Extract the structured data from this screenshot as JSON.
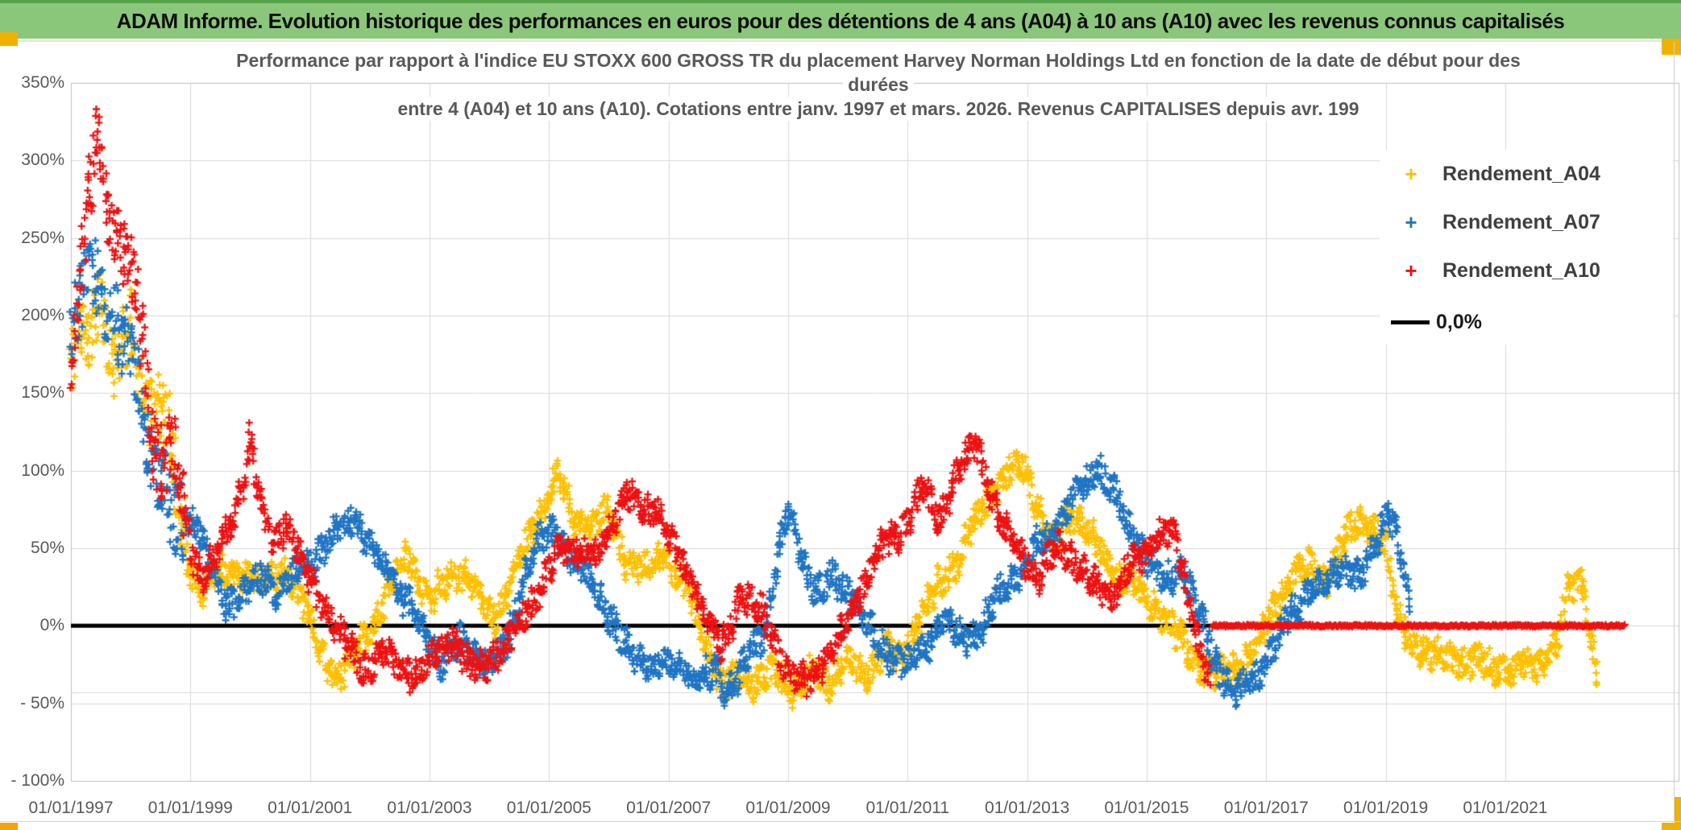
{
  "banner": {
    "title": "ADAM Informe. Evolution historique des performances en euros pour des détentions de 4 ans (A04) à 10 ans (A10) avec les revenus connus capitalisés"
  },
  "colors": {
    "banner_bg": "#8BC77B",
    "banner_top_edge": "#55A24B",
    "accent_gold": "#F0B100",
    "accent_orange": "#F5A300",
    "grid": "#D9D9D9",
    "plot_border": "#BFBFBF",
    "axis_text": "#595959",
    "title_text": "#595959",
    "legend_text": "#3F3F3F",
    "series_a04": "#FFC000",
    "series_a07": "#1F74C4",
    "series_a10": "#EE1111",
    "zero_line": "#000000"
  },
  "chart_data": {
    "type": "scatter",
    "title_lines": [
      "Performance par rapport à l'indice EU STOXX 600 GROSS TR  du placement Harvey Norman Holdings Ltd en fonction de la date de début pour des",
      "durées",
      "entre 4 (A04) et 10 ans (A10). Cotations entre janv. 1997 et mars. 2026. Revenus CAPITALISES depuis avr. 199"
    ],
    "legend_position": "right-top",
    "axes": {
      "y_min": -100,
      "y_max": 350,
      "y_major_unit": 50,
      "x_min_year": 1997.0,
      "x_max_year": 2023.9,
      "x_tick_step_years": 2,
      "grid": true,
      "extra_gridline_value": -43
    },
    "y_tick_labels": [
      "350%",
      "300%",
      "250%",
      "200%",
      "150%",
      "100%",
      "50%",
      "0%",
      "- 50%",
      "- 100%"
    ],
    "y_tick_values": [
      350,
      300,
      250,
      200,
      150,
      100,
      50,
      0,
      -50,
      -100
    ],
    "x_tick_labels": [
      "01/01/1997",
      "01/01/1999",
      "01/01/2001",
      "01/01/2003",
      "01/01/2005",
      "01/01/2007",
      "01/01/2009",
      "01/01/2011",
      "01/01/2013",
      "01/01/2015",
      "01/01/2017",
      "01/01/2019",
      "01/01/2021"
    ],
    "x_tick_years": [
      1997,
      1999,
      2001,
      2003,
      2005,
      2007,
      2009,
      2011,
      2013,
      2015,
      2017,
      2019,
      2021
    ],
    "zero_line": {
      "label": "0,0%",
      "value": 0,
      "color": "#000000",
      "x_start_year": 1997.0,
      "x_end_year": 2023.0
    },
    "series": [
      {
        "name": "Rendement_A04",
        "color": "#FFC000",
        "marker": "plus",
        "seed": 101,
        "anchors": [
          [
            1997.0,
            165
          ],
          [
            1997.15,
            205
          ],
          [
            1997.3,
            185
          ],
          [
            1997.5,
            210
          ],
          [
            1997.7,
            160
          ],
          [
            1997.85,
            185
          ],
          [
            1998.0,
            195
          ],
          [
            1998.2,
            150
          ],
          [
            1998.4,
            130
          ],
          [
            1998.55,
            150
          ],
          [
            1998.7,
            115
          ],
          [
            1998.85,
            70
          ],
          [
            1999.0,
            30
          ],
          [
            1999.2,
            25
          ],
          [
            1999.4,
            40
          ],
          [
            1999.7,
            30
          ],
          [
            2000.0,
            35
          ],
          [
            2000.3,
            25
          ],
          [
            2000.6,
            35
          ],
          [
            2000.9,
            15
          ],
          [
            2001.2,
            -20
          ],
          [
            2001.5,
            -32
          ],
          [
            2001.8,
            -15
          ],
          [
            2002.1,
            5
          ],
          [
            2002.4,
            30
          ],
          [
            2002.6,
            48
          ],
          [
            2002.8,
            30
          ],
          [
            2003.0,
            15
          ],
          [
            2003.3,
            30
          ],
          [
            2003.6,
            35
          ],
          [
            2003.9,
            15
          ],
          [
            2004.1,
            5
          ],
          [
            2004.4,
            30
          ],
          [
            2004.7,
            60
          ],
          [
            2005.0,
            85
          ],
          [
            2005.15,
            98
          ],
          [
            2005.4,
            70
          ],
          [
            2005.7,
            62
          ],
          [
            2006.0,
            75
          ],
          [
            2006.3,
            40
          ],
          [
            2006.6,
            35
          ],
          [
            2006.9,
            48
          ],
          [
            2007.1,
            35
          ],
          [
            2007.4,
            15
          ],
          [
            2007.7,
            -20
          ],
          [
            2007.9,
            -42
          ],
          [
            2008.2,
            -30
          ],
          [
            2008.5,
            -38
          ],
          [
            2008.8,
            -28
          ],
          [
            2009.1,
            -42
          ],
          [
            2009.4,
            -30
          ],
          [
            2009.7,
            -35
          ],
          [
            2010.0,
            -25
          ],
          [
            2010.3,
            -30
          ],
          [
            2010.6,
            -15
          ],
          [
            2010.9,
            -22
          ],
          [
            2011.2,
            5
          ],
          [
            2011.5,
            25
          ],
          [
            2011.8,
            40
          ],
          [
            2012.1,
            65
          ],
          [
            2012.4,
            85
          ],
          [
            2012.7,
            100
          ],
          [
            2012.95,
            103
          ],
          [
            2013.2,
            75
          ],
          [
            2013.45,
            50
          ],
          [
            2013.7,
            72
          ],
          [
            2013.9,
            68
          ],
          [
            2014.1,
            55
          ],
          [
            2014.4,
            38
          ],
          [
            2014.7,
            28
          ],
          [
            2015.0,
            18
          ],
          [
            2015.3,
            8
          ],
          [
            2015.6,
            -12
          ],
          [
            2015.9,
            -25
          ],
          [
            2016.2,
            -32
          ],
          [
            2016.5,
            -28
          ],
          [
            2016.8,
            -15
          ],
          [
            2017.1,
            10
          ],
          [
            2017.4,
            30
          ],
          [
            2017.7,
            38
          ],
          [
            2018.0,
            28
          ],
          [
            2018.3,
            55
          ],
          [
            2018.55,
            68
          ],
          [
            2018.8,
            62
          ],
          [
            2019.0,
            50
          ],
          [
            2019.2,
            10
          ],
          [
            2019.45,
            -12
          ],
          [
            2019.7,
            -20
          ],
          [
            2020.0,
            -15
          ],
          [
            2020.3,
            -28
          ],
          [
            2020.6,
            -20
          ],
          [
            2020.9,
            -28
          ],
          [
            2021.1,
            -35
          ],
          [
            2021.35,
            -20
          ],
          [
            2021.6,
            -28
          ],
          [
            2021.85,
            -15
          ],
          [
            2022.05,
            28
          ],
          [
            2022.3,
            25
          ],
          [
            2022.45,
            -15
          ],
          [
            2022.55,
            -33
          ]
        ]
      },
      {
        "name": "Rendement_A07",
        "color": "#1F74C4",
        "marker": "plus",
        "seed": 202,
        "anchors": [
          [
            1997.0,
            185
          ],
          [
            1997.2,
            215
          ],
          [
            1997.4,
            228
          ],
          [
            1997.6,
            205
          ],
          [
            1997.8,
            190
          ],
          [
            1998.0,
            172
          ],
          [
            1998.15,
            150
          ],
          [
            1998.3,
            118
          ],
          [
            1998.5,
            95
          ],
          [
            1998.7,
            68
          ],
          [
            1998.9,
            70
          ],
          [
            1999.1,
            68
          ],
          [
            1999.3,
            40
          ],
          [
            1999.6,
            15
          ],
          [
            1999.9,
            22
          ],
          [
            2000.2,
            32
          ],
          [
            2000.5,
            22
          ],
          [
            2000.8,
            35
          ],
          [
            2001.1,
            45
          ],
          [
            2001.4,
            58
          ],
          [
            2001.7,
            72
          ],
          [
            2002.0,
            52
          ],
          [
            2002.3,
            35
          ],
          [
            2002.6,
            18
          ],
          [
            2002.9,
            -5
          ],
          [
            2003.2,
            -22
          ],
          [
            2003.5,
            -12
          ],
          [
            2003.8,
            -18
          ],
          [
            2004.0,
            -26
          ],
          [
            2004.3,
            -12
          ],
          [
            2004.6,
            35
          ],
          [
            2004.9,
            58
          ],
          [
            2005.1,
            62
          ],
          [
            2005.4,
            42
          ],
          [
            2005.7,
            30
          ],
          [
            2006.0,
            8
          ],
          [
            2006.3,
            -15
          ],
          [
            2006.6,
            -22
          ],
          [
            2006.9,
            -28
          ],
          [
            2007.2,
            -22
          ],
          [
            2007.5,
            -35
          ],
          [
            2007.8,
            -30
          ],
          [
            2008.0,
            -42
          ],
          [
            2008.3,
            -22
          ],
          [
            2008.6,
            -5
          ],
          [
            2008.85,
            50
          ],
          [
            2009.0,
            74
          ],
          [
            2009.2,
            45
          ],
          [
            2009.5,
            22
          ],
          [
            2009.8,
            30
          ],
          [
            2010.1,
            18
          ],
          [
            2010.4,
            -5
          ],
          [
            2010.7,
            -18
          ],
          [
            2011.0,
            -25
          ],
          [
            2011.3,
            -12
          ],
          [
            2011.6,
            3
          ],
          [
            2011.9,
            -8
          ],
          [
            2012.2,
            -3
          ],
          [
            2012.5,
            18
          ],
          [
            2012.8,
            32
          ],
          [
            2013.1,
            48
          ],
          [
            2013.4,
            58
          ],
          [
            2013.7,
            78
          ],
          [
            2013.95,
            88
          ],
          [
            2014.2,
            103
          ],
          [
            2014.45,
            85
          ],
          [
            2014.7,
            62
          ],
          [
            2015.0,
            45
          ],
          [
            2015.3,
            28
          ],
          [
            2015.6,
            38
          ],
          [
            2015.9,
            5
          ],
          [
            2016.2,
            -28
          ],
          [
            2016.5,
            -42
          ],
          [
            2016.8,
            -35
          ],
          [
            2017.1,
            -15
          ],
          [
            2017.4,
            8
          ],
          [
            2017.7,
            22
          ],
          [
            2018.0,
            28
          ],
          [
            2018.3,
            38
          ],
          [
            2018.6,
            32
          ],
          [
            2018.85,
            55
          ],
          [
            2019.05,
            78
          ],
          [
            2019.25,
            45
          ],
          [
            2019.4,
            8
          ]
        ]
      },
      {
        "name": "Rendement_A10",
        "color": "#EE1111",
        "marker": "plus",
        "seed": 303,
        "flat_zero_segment": [
          2016.1,
          2023.0
        ],
        "anchors": [
          [
            1997.0,
            150
          ],
          [
            1997.15,
            225
          ],
          [
            1997.3,
            278
          ],
          [
            1997.45,
            320
          ],
          [
            1997.6,
            262
          ],
          [
            1997.75,
            252
          ],
          [
            1997.9,
            238
          ],
          [
            1998.05,
            228
          ],
          [
            1998.2,
            185
          ],
          [
            1998.35,
            122
          ],
          [
            1998.5,
            105
          ],
          [
            1998.65,
            118
          ],
          [
            1998.8,
            98
          ],
          [
            1999.0,
            48
          ],
          [
            1999.2,
            32
          ],
          [
            1999.45,
            48
          ],
          [
            1999.7,
            65
          ],
          [
            1999.9,
            98
          ],
          [
            2000.0,
            122
          ],
          [
            2000.2,
            72
          ],
          [
            2000.4,
            52
          ],
          [
            2000.6,
            68
          ],
          [
            2000.8,
            48
          ],
          [
            2001.0,
            28
          ],
          [
            2001.3,
            8
          ],
          [
            2001.6,
            -12
          ],
          [
            2001.9,
            -28
          ],
          [
            2002.2,
            -18
          ],
          [
            2002.5,
            -25
          ],
          [
            2002.8,
            -32
          ],
          [
            2003.1,
            -18
          ],
          [
            2003.4,
            -8
          ],
          [
            2003.7,
            -28
          ],
          [
            2004.0,
            -22
          ],
          [
            2004.3,
            -12
          ],
          [
            2004.6,
            8
          ],
          [
            2004.9,
            28
          ],
          [
            2005.2,
            48
          ],
          [
            2005.5,
            52
          ],
          [
            2005.8,
            42
          ],
          [
            2006.0,
            62
          ],
          [
            2006.3,
            88
          ],
          [
            2006.55,
            72
          ],
          [
            2006.8,
            78
          ],
          [
            2007.0,
            58
          ],
          [
            2007.3,
            32
          ],
          [
            2007.6,
            12
          ],
          [
            2007.9,
            -18
          ],
          [
            2008.2,
            22
          ],
          [
            2008.5,
            12
          ],
          [
            2008.8,
            -12
          ],
          [
            2009.0,
            -28
          ],
          [
            2009.3,
            -38
          ],
          [
            2009.6,
            -22
          ],
          [
            2009.9,
            -5
          ],
          [
            2010.2,
            22
          ],
          [
            2010.5,
            48
          ],
          [
            2010.8,
            58
          ],
          [
            2011.0,
            68
          ],
          [
            2011.25,
            88
          ],
          [
            2011.5,
            68
          ],
          [
            2011.75,
            92
          ],
          [
            2012.0,
            108
          ],
          [
            2012.15,
            118
          ],
          [
            2012.35,
            92
          ],
          [
            2012.6,
            62
          ],
          [
            2012.9,
            48
          ],
          [
            2013.2,
            32
          ],
          [
            2013.5,
            52
          ],
          [
            2013.8,
            42
          ],
          [
            2014.1,
            28
          ],
          [
            2014.4,
            18
          ],
          [
            2014.7,
            38
          ],
          [
            2015.0,
            48
          ],
          [
            2015.3,
            62
          ],
          [
            2015.5,
            55
          ],
          [
            2015.7,
            18
          ],
          [
            2015.9,
            -15
          ],
          [
            2016.05,
            -35
          ]
        ]
      }
    ]
  }
}
